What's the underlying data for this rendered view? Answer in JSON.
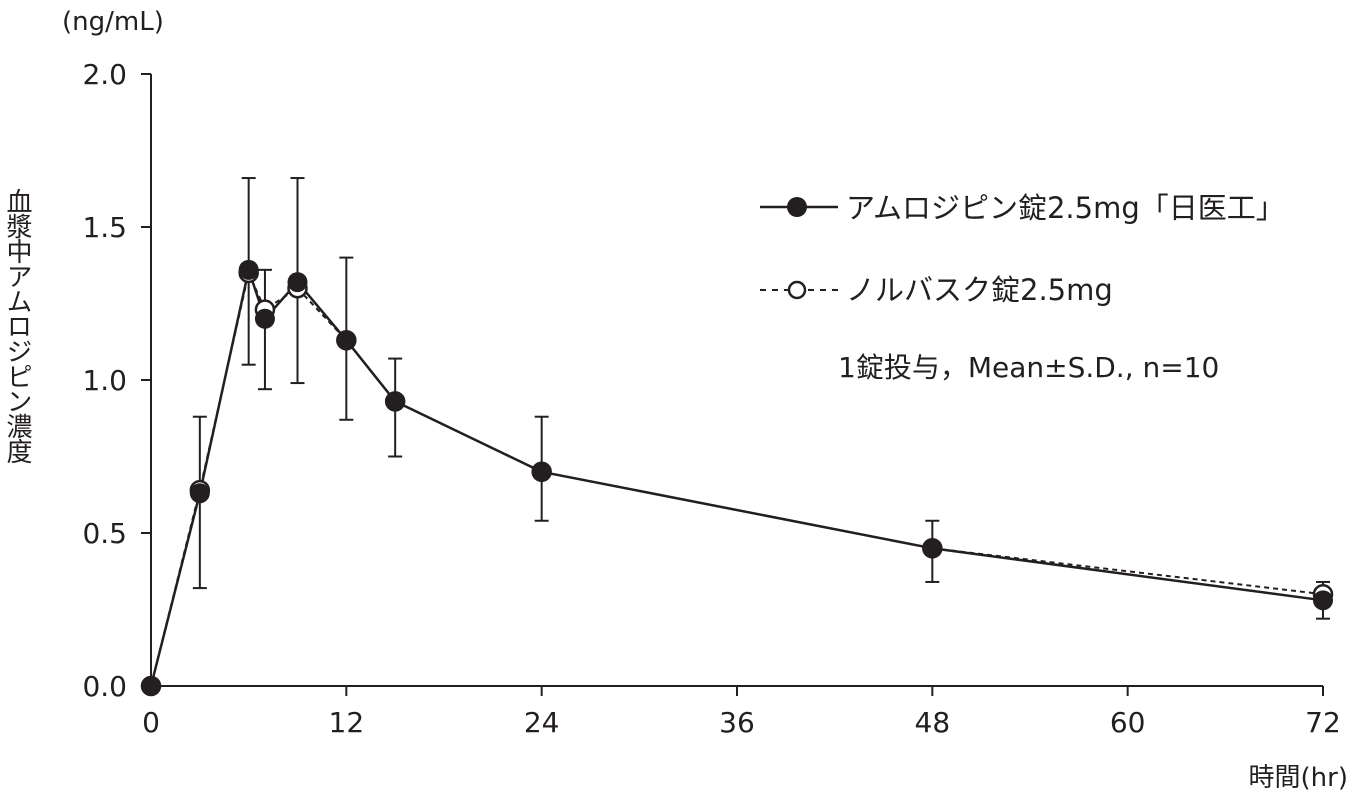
{
  "chart_data": {
    "type": "line",
    "title": "",
    "xlabel": "時間(hr)",
    "ylabel": "血漿中アムロジピン濃度",
    "yunit": "(ng/mL)",
    "xlim": [
      0,
      72
    ],
    "ylim": [
      0,
      2.0
    ],
    "xticks": [
      "0",
      "12",
      "24",
      "36",
      "48",
      "60",
      "72"
    ],
    "yticks": [
      "0.0",
      "0.5",
      "1.0",
      "1.5",
      "2.0"
    ],
    "grid": false,
    "legend_position": "top-right",
    "note": "1錠投与，Mean±S.D., n=10",
    "x": [
      0,
      3,
      6,
      7,
      9,
      12,
      15,
      24,
      48,
      72
    ],
    "series": [
      {
        "name": "アムロジピン錠2.5mg「日医工」",
        "marker": "filled-circle",
        "line": "solid",
        "values": [
          0,
          0.63,
          1.36,
          1.2,
          1.32,
          1.13,
          0.93,
          0.7,
          0.45,
          0.28
        ]
      },
      {
        "name": "ノルバスク錠2.5mg",
        "marker": "open-circle",
        "line": "dashed",
        "values": [
          0,
          0.64,
          1.35,
          1.23,
          1.3,
          1.13,
          0.93,
          0.7,
          0.45,
          0.3
        ]
      }
    ],
    "error_bars": {
      "x": [
        3,
        6,
        7,
        9,
        12,
        15,
        24,
        48,
        72
      ],
      "upper": [
        0.88,
        1.66,
        1.36,
        1.66,
        1.4,
        1.07,
        0.88,
        0.54,
        0.34
      ],
      "lower": [
        0.32,
        1.05,
        0.97,
        0.99,
        0.87,
        0.75,
        0.54,
        0.34,
        0.22
      ]
    }
  }
}
